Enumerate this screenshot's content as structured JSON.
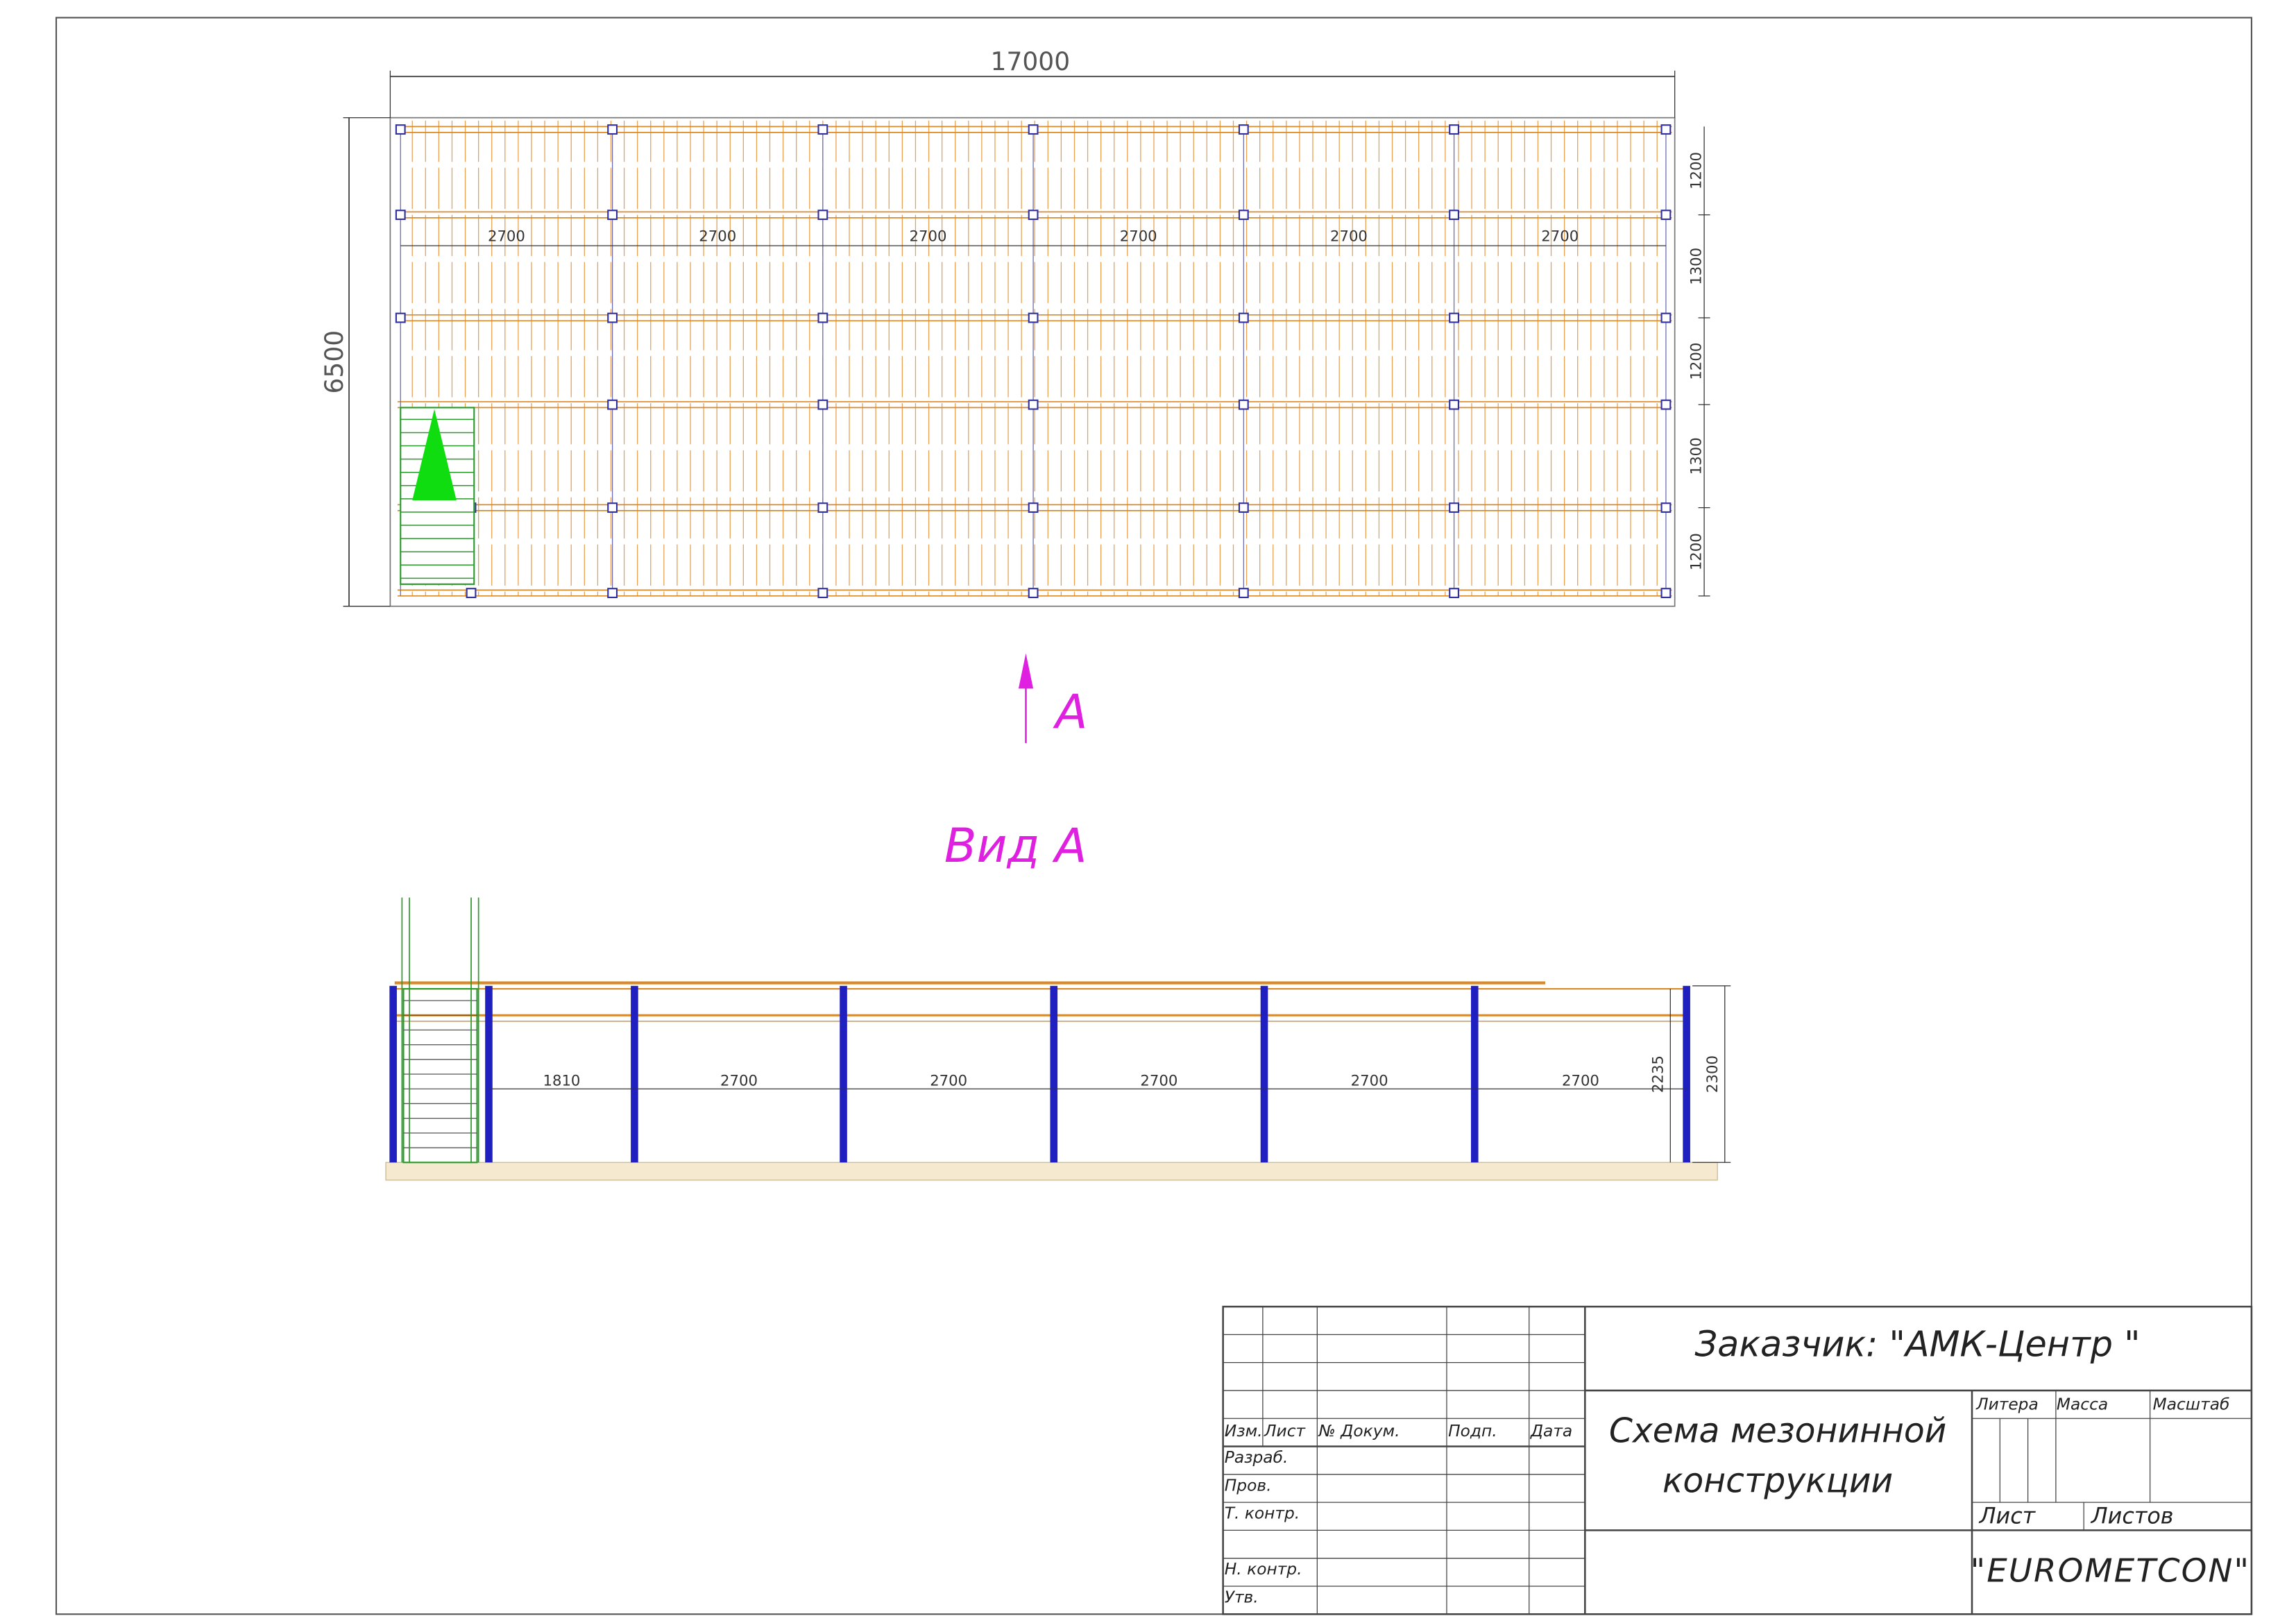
{
  "plan_view": {
    "overall_length": 17000,
    "overall_width": 6500,
    "bay_spans": [
      2700,
      2700,
      2700,
      2700,
      2700,
      2700
    ],
    "row_spans": [
      1200,
      1300,
      1200,
      1300,
      1200
    ]
  },
  "view_marker": "A",
  "side_view": {
    "title": "Вид А",
    "spans": [
      1810,
      2700,
      2700,
      2700,
      2700,
      2700
    ],
    "beam_height": 2235,
    "total_height": 2300
  },
  "title_block": {
    "customer": "Заказчик: \"АМК-Центр \"",
    "drawing_title": [
      "Схема мезонинной",
      "конструкции"
    ],
    "headers": [
      "Литера",
      "Масса",
      "Масштаб"
    ],
    "sheet_labels": [
      "Лист",
      "Листов"
    ],
    "company": "\"EUROMETCON\"",
    "revision_headers": [
      "Изм.",
      "Лист",
      "№ Докум.",
      "Подп.",
      "Дата"
    ],
    "signature_rows": [
      "Разраб.",
      "Пров.",
      "Т. контр.",
      "Н. контр.",
      "Утв."
    ]
  }
}
